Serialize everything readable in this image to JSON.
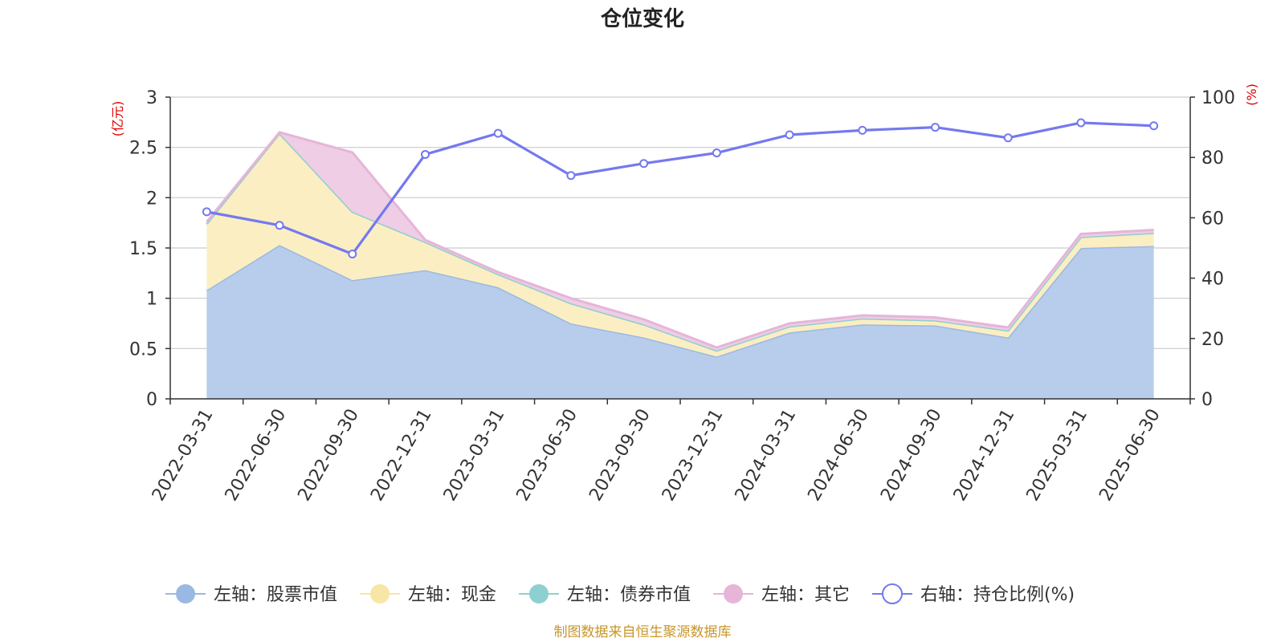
{
  "chart_data": {
    "type": "area",
    "title": "仓位变化",
    "source": "制图数据来自恒生聚源数据库",
    "categories": [
      "2022-03-31",
      "2022-06-30",
      "2022-09-30",
      "2022-12-31",
      "2023-03-31",
      "2023-06-30",
      "2023-09-30",
      "2023-12-31",
      "2024-03-31",
      "2024-06-30",
      "2024-09-30",
      "2024-12-31",
      "2025-03-31",
      "2025-06-30"
    ],
    "y_left": {
      "unit": "(亿元)",
      "min": 0,
      "max": 3,
      "ticks": [
        "0",
        "0.5",
        "1",
        "1.5",
        "2",
        "2.5",
        "3"
      ]
    },
    "y_right": {
      "unit": "(%)",
      "min": 0,
      "max": 100,
      "ticks": [
        "0",
        "20",
        "40",
        "60",
        "80",
        "100"
      ]
    },
    "grid": true,
    "legend_position": "bottom",
    "series": [
      {
        "name": "左轴：股票市值",
        "axis": "left",
        "stacked": true,
        "color": "#9ab9e2",
        "fill": "#b8cdeb",
        "values": [
          1.08,
          1.53,
          1.18,
          1.28,
          1.11,
          0.75,
          0.61,
          0.42,
          0.66,
          0.74,
          0.73,
          0.61,
          1.5,
          1.52
        ]
      },
      {
        "name": "左轴：现金",
        "axis": "left",
        "stacked": true,
        "color": "#f7e6a6",
        "fill": "#fbeec2",
        "values": [
          0.66,
          1.11,
          0.68,
          0.28,
          0.13,
          0.2,
          0.13,
          0.06,
          0.06,
          0.06,
          0.05,
          0.07,
          0.11,
          0.13
        ]
      },
      {
        "name": "左轴：债券市值",
        "axis": "left",
        "stacked": true,
        "color": "#8ecfd0",
        "fill": "#b5e0e1",
        "values": [
          0,
          0,
          0,
          0,
          0,
          0,
          0,
          0,
          0,
          0,
          0,
          0,
          0,
          0
        ]
      },
      {
        "name": "左轴：其它",
        "axis": "left",
        "stacked": true,
        "color": "#e6b5d8",
        "fill": "#eecde5",
        "values": [
          0.02,
          0.01,
          0.59,
          0.02,
          0.02,
          0.05,
          0.05,
          0.03,
          0.03,
          0.03,
          0.03,
          0.03,
          0.03,
          0.03
        ]
      },
      {
        "name": "右轴：持仓比例(%)",
        "axis": "right",
        "type": "line",
        "color": "#7479ee",
        "values": [
          62,
          57.5,
          48,
          81,
          88,
          74,
          78,
          81.5,
          87.5,
          89,
          90,
          86.5,
          91.5,
          90.5
        ]
      }
    ]
  }
}
